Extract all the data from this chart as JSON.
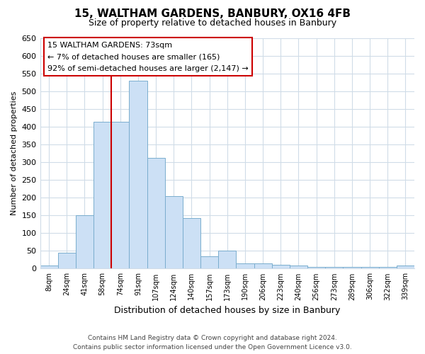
{
  "title": "15, WALTHAM GARDENS, BANBURY, OX16 4FB",
  "subtitle": "Size of property relative to detached houses in Banbury",
  "xlabel": "Distribution of detached houses by size in Banbury",
  "ylabel": "Number of detached properties",
  "bar_labels": [
    "8sqm",
    "24sqm",
    "41sqm",
    "58sqm",
    "74sqm",
    "91sqm",
    "107sqm",
    "124sqm",
    "140sqm",
    "157sqm",
    "173sqm",
    "190sqm",
    "206sqm",
    "223sqm",
    "240sqm",
    "256sqm",
    "273sqm",
    "289sqm",
    "306sqm",
    "322sqm",
    "339sqm"
  ],
  "bar_values": [
    8,
    44,
    150,
    415,
    415,
    530,
    313,
    205,
    142,
    35,
    50,
    15,
    15,
    10,
    8,
    5,
    5,
    5,
    5,
    5,
    8
  ],
  "bar_color": "#cce0f5",
  "bar_edge_color": "#7aadce",
  "vline_color": "#cc0000",
  "ylim": [
    0,
    650
  ],
  "yticks": [
    0,
    50,
    100,
    150,
    200,
    250,
    300,
    350,
    400,
    450,
    500,
    550,
    600,
    650
  ],
  "annotation_title": "15 WALTHAM GARDENS: 73sqm",
  "annotation_line1": "← 7% of detached houses are smaller (165)",
  "annotation_line2": "92% of semi-detached houses are larger (2,147) →",
  "annotation_box_color": "#ffffff",
  "annotation_box_edge": "#cc0000",
  "footer1": "Contains HM Land Registry data © Crown copyright and database right 2024.",
  "footer2": "Contains public sector information licensed under the Open Government Licence v3.0.",
  "background_color": "#ffffff",
  "grid_color": "#d0dce8"
}
